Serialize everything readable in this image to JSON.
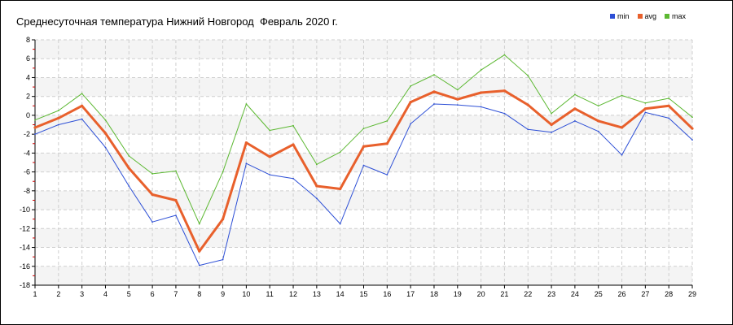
{
  "chart_data": {
    "type": "line",
    "title": "Среднесуточная температура Нижний Новгород  Февраль 2020 г.",
    "categories": [
      1,
      2,
      3,
      4,
      5,
      6,
      7,
      8,
      9,
      10,
      11,
      12,
      13,
      14,
      15,
      16,
      17,
      18,
      19,
      20,
      21,
      22,
      23,
      24,
      25,
      26,
      27,
      28,
      29
    ],
    "ylim": [
      -18,
      8
    ],
    "yticks": [
      8,
      6,
      4,
      2,
      0,
      -2,
      -4,
      -6,
      -8,
      -10,
      -12,
      -14,
      -16,
      -18
    ],
    "grid": true,
    "legend_position": "top-right",
    "series": [
      {
        "name": "min",
        "color": "#2d4fd6",
        "values": [
          -2.0,
          -1.0,
          -0.4,
          -3.4,
          -7.5,
          -11.3,
          -10.6,
          -15.9,
          -15.3,
          -5.1,
          -6.3,
          -6.7,
          -8.8,
          -11.5,
          -5.3,
          -6.3,
          -0.9,
          1.2,
          1.1,
          0.9,
          0.2,
          -1.5,
          -1.8,
          -0.6,
          -1.7,
          -4.2,
          0.3,
          -0.3,
          -2.6
        ]
      },
      {
        "name": "avg",
        "color": "#e8602c",
        "values": [
          -1.3,
          -0.3,
          1.0,
          -1.9,
          -5.6,
          -8.4,
          -9.0,
          -14.4,
          -11.0,
          -2.9,
          -4.4,
          -3.1,
          -7.5,
          -7.8,
          -3.3,
          -3.0,
          1.4,
          2.5,
          1.7,
          2.4,
          2.6,
          1.1,
          -1.0,
          0.7,
          -0.6,
          -1.3,
          0.7,
          1.0,
          -1.4
        ]
      },
      {
        "name": "max",
        "color": "#5cb832",
        "values": [
          -0.5,
          0.5,
          2.3,
          -0.5,
          -4.3,
          -6.2,
          -5.9,
          -11.5,
          -6.0,
          1.2,
          -1.6,
          -1.1,
          -5.2,
          -3.9,
          -1.4,
          -0.6,
          3.1,
          4.3,
          2.7,
          4.8,
          6.4,
          4.2,
          0.2,
          2.2,
          1.0,
          2.1,
          1.3,
          1.8,
          -0.2
        ]
      }
    ]
  }
}
